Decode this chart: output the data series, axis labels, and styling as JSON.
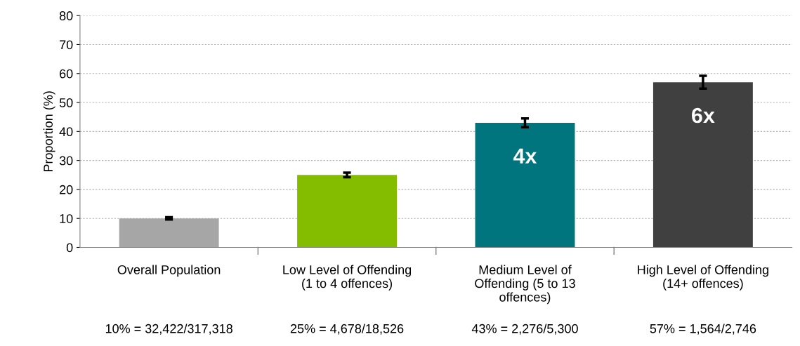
{
  "chart_data": {
    "type": "bar",
    "ylabel": "Proportion (%)",
    "categories": [
      "Overall Population",
      "Low Level of Offending\n(1 to 4 offences)",
      "Medium Level of\nOffending (5 to 13\noffences)",
      "High Level of Offending\n(14+ offences)"
    ],
    "values": [
      10,
      25,
      43,
      57
    ],
    "colors": [
      "#a6a6a6",
      "#84bd00",
      "#00757e",
      "#404040"
    ],
    "errors": [
      0.4,
      0.8,
      1.5,
      2.2
    ],
    "ylim": [
      0,
      80
    ],
    "yticks": [
      0,
      10,
      20,
      30,
      40,
      50,
      60,
      70,
      80
    ],
    "grid": "y",
    "annotations": [
      "10% = 32,422/317,318",
      "25% = 4,678/18,526",
      "43% = 2,276/5,300",
      "57% = 1,564/2,746",
      "4x",
      "6x"
    ]
  }
}
